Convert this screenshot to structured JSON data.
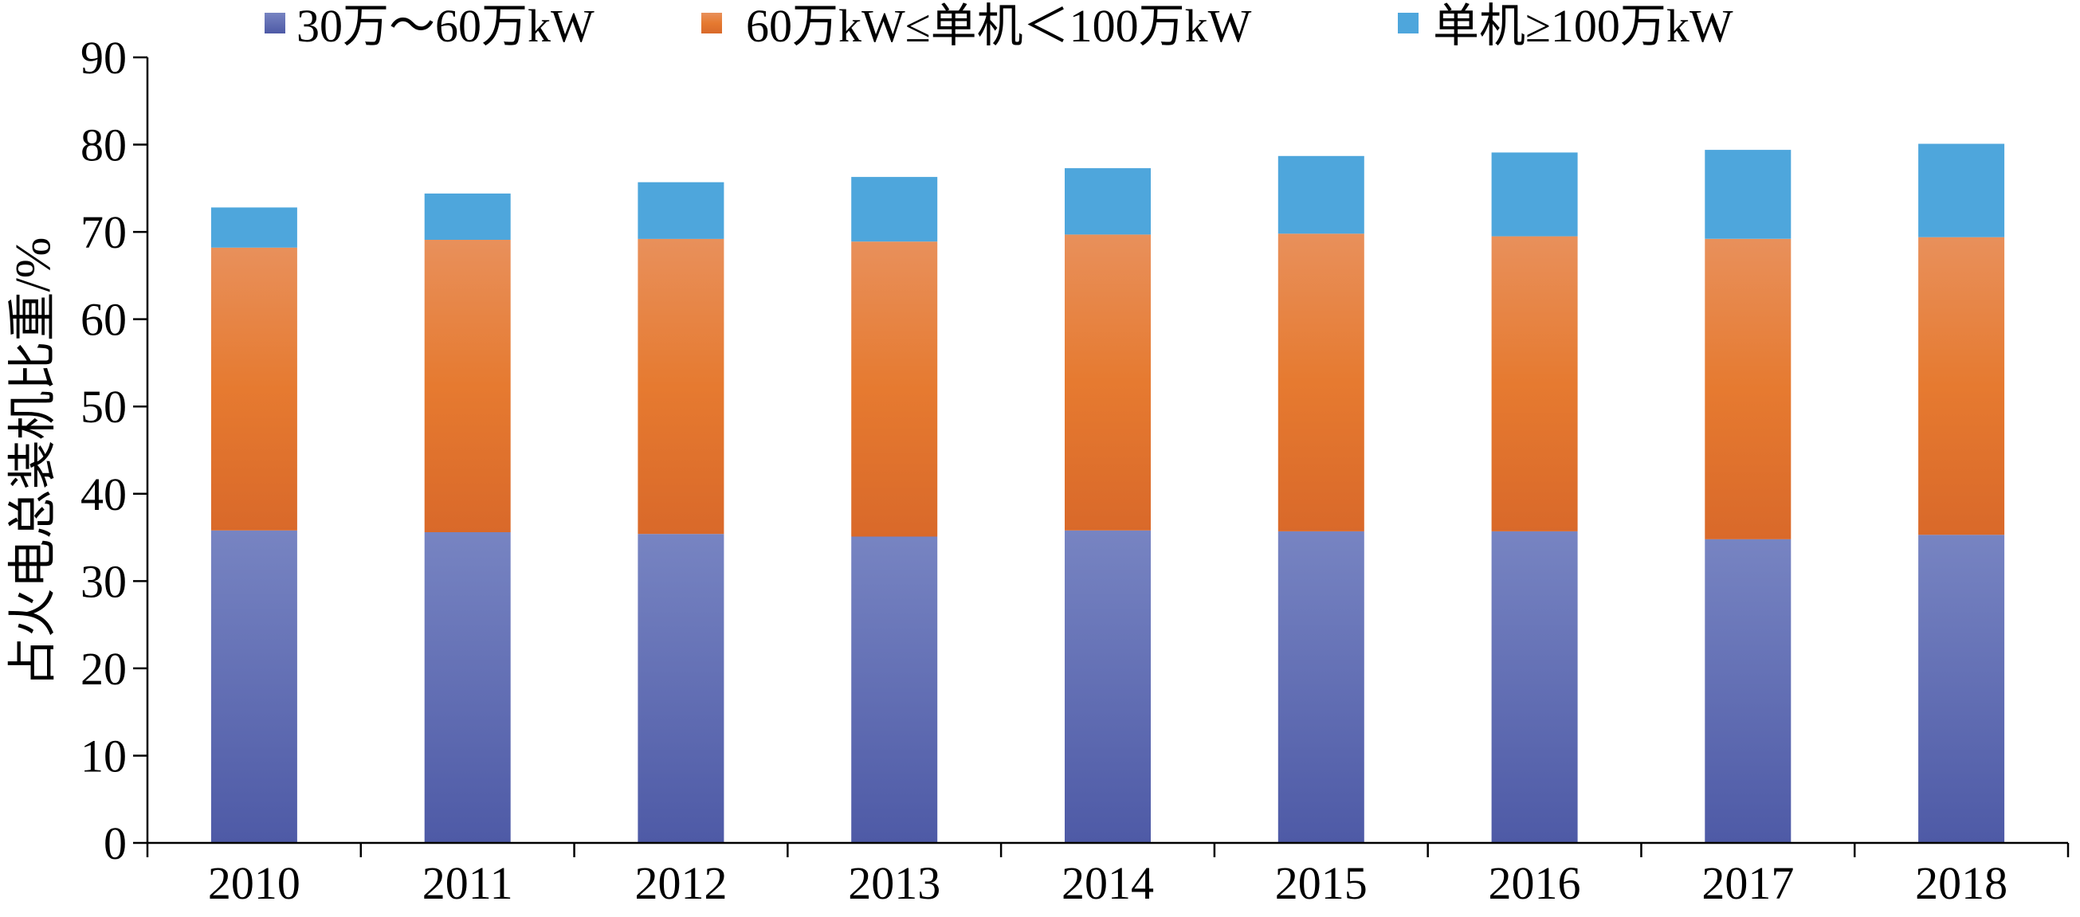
{
  "chart_data": {
    "type": "bar",
    "stacked": true,
    "title": "",
    "xlabel": "",
    "ylabel": "占火电总装机比重/%",
    "ylim": [
      0,
      90
    ],
    "yticks": [
      0,
      10,
      20,
      30,
      40,
      50,
      60,
      70,
      80,
      90
    ],
    "grid": false,
    "legend_position": "top",
    "categories": [
      "2010",
      "2011",
      "2012",
      "2013",
      "2014",
      "2015",
      "2016",
      "2017",
      "2018"
    ],
    "series": [
      {
        "name": "30万～60万kW",
        "color": "#5b67b0",
        "values": [
          35.8,
          35.6,
          35.4,
          35.1,
          35.8,
          35.7,
          35.7,
          34.8,
          35.3
        ]
      },
      {
        "name": "60万kW≤单机＜100万kW",
        "color": "#e67e37",
        "values": [
          32.4,
          33.5,
          33.8,
          33.8,
          33.9,
          34.1,
          33.8,
          34.4,
          34.1
        ]
      },
      {
        "name": "单机≥100万kW",
        "color": "#4ea6dc",
        "values": [
          4.6,
          5.3,
          6.5,
          7.4,
          7.6,
          8.9,
          9.6,
          10.2,
          10.7
        ]
      }
    ]
  }
}
